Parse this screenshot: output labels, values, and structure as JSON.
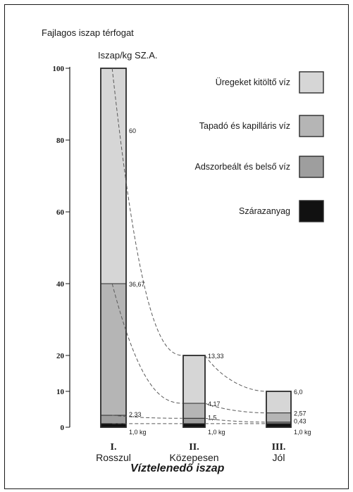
{
  "chart_data": {
    "type": "bar",
    "ylabel": "Fajlagos iszap térfogat",
    "yunit": "Iszap/kg SZ.A.",
    "xlabel": "Víztelenedő iszap",
    "yticks": [
      "0",
      "10",
      "20",
      "40",
      "60",
      "80",
      "100"
    ],
    "categories": [
      {
        "numeral": "I.",
        "label": "Rosszul"
      },
      {
        "numeral": "II.",
        "label": "Közepesen"
      },
      {
        "numeral": "III.",
        "label": "Jól"
      }
    ],
    "series": [
      {
        "name": "Szárazanyag",
        "color": "#111111",
        "values": [
          1,
          1,
          1
        ]
      },
      {
        "name": "Adszorbeált és belső víz",
        "color": "#9e9e9e",
        "values": [
          2.33,
          1.5,
          0.43
        ]
      },
      {
        "name": "Tapadó és kapilláris víz",
        "color": "#b5b5b5",
        "values": [
          36.67,
          4.17,
          2.57
        ]
      },
      {
        "name": "Üregeket kitöltő víz",
        "color": "#d6d6d6",
        "values": [
          60,
          13.33,
          6.0
        ]
      }
    ],
    "legend": [
      "Üregeket kitöltő víz",
      "Tapadó és kapilláris víz",
      "Adszorbeált és belső víz",
      "Szárazanyag"
    ],
    "segment_labels": [
      [
        "1,0 kg",
        "2,33",
        "36,67",
        "60"
      ],
      [
        "1,0 kg",
        "1,5",
        "4,17",
        "13,33"
      ],
      [
        "1,0 kg",
        "0,43",
        "2,57",
        "6,0"
      ]
    ],
    "legend_position": "right"
  }
}
